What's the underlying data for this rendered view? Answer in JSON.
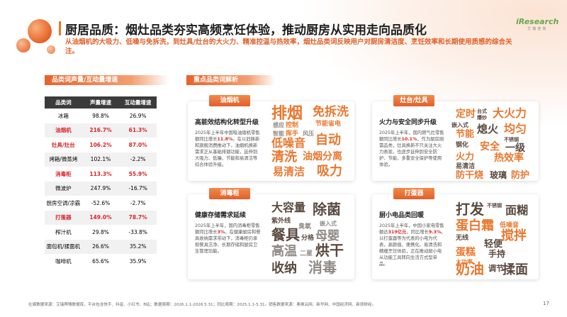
{
  "header": {
    "title": "厨居品质：烟灶品类夯实高频烹饪体验，推动厨房从实用走向品质化",
    "subtitle": "从油烟机的大吸力、低噪与免拆洗，到灶具/灶台的大火力、精准控温与热效率，烟灶品类词反映用户对厨房清洁度、烹饪效率和长期使用质感的综合关注。",
    "logo": {
      "brand": "iResearch",
      "name": "艾瑞咨询"
    }
  },
  "table_section": {
    "title": "品类词声量/互动量增速",
    "table": {
      "columns": [
        "品类词",
        "声量增速",
        "互动量增速"
      ],
      "rows": [
        [
          "冰箱",
          "98.8%",
          "26.9%"
        ],
        [
          "油烟机",
          "216.7%",
          "61.3%"
        ],
        [
          "灶具/灶台",
          "106.2%",
          "87.0%"
        ],
        [
          "烤箱/微蒸烤",
          "102.1%",
          "-2.2%"
        ],
        [
          "消毒柜",
          "113.3%",
          "55.9%"
        ],
        [
          "微波炉",
          "247.9%",
          "-16.7%"
        ],
        [
          "厨房空调/凉霸",
          "-52.6%",
          "-2.7%"
        ],
        [
          "打蛋器",
          "149.0%",
          "78.7%"
        ],
        [
          "榨汁机",
          "29.8%",
          "-33.8%"
        ],
        [
          "面包机/揉面机",
          "26.6%",
          "35.2%"
        ],
        [
          "咖啡机",
          "65.6%",
          "35.9%"
        ]
      ],
      "highlighted_rows": [
        1,
        2,
        4,
        7
      ]
    }
  },
  "analysis_section": {
    "title": "重点品类词解析",
    "cards": [
      {
        "tag": "油烟机",
        "heading": "高能效结构化转型升级",
        "body": [
          "2025年上半年中国吸油烟机零售额同比增长",
          "11.8%",
          "。在以旧换新和旗舰消费推动下，油烟机换新需求正从基础排烟功能，延伸到大吸力、低噪、节能和易清洁等综合体验升级。"
        ],
        "words": [
          "排烟",
          "免拆洗",
          "感应",
          "控制",
          "节能省电",
          "智能",
          "挥手",
          "风压",
          "低噪音",
          "自动",
          "清洗",
          "油烟分离",
          "易清洁",
          "吸力"
        ]
      },
      {
        "tag": "灶台/灶具",
        "heading": "火力与安全同步升级",
        "body": [
          "2025年上半年，国内燃气灶零售额同比增长",
          "10.1%",
          "，作为厨房刚需品类，灶具换新不只关注大火力表现，也逐步延伸到安全防护、节能、多重安全保护等使用体验。"
        ],
        "words": [
          "定时",
          "台式",
          "爆炒",
          "大火力",
          "嵌入式",
          "熄火",
          "均匀",
          "节能",
          "钢化",
          "不锈钢",
          "安全",
          "一级",
          "火力",
          "热效率",
          "易清洁",
          "防干烧",
          "玻璃",
          "防护"
        ]
      },
      {
        "tag": "消毒柜",
        "heading": "健康存储需求延续",
        "body": [
          "2025年上半年，国内消毒柜零售额同比增长",
          "3%",
          "。在健康厨房和餐具收纳需求带动下，消毒柜仍承担餐具洁净、长期存储和厨房卫生管理功能。"
        ],
        "words": [
          "大容量",
          "除菌",
          "紫外线",
          "臭氧",
          "嵌入式",
          "餐具",
          "分格",
          "母婴",
          "高温",
          "二星",
          "烘干",
          "收纳",
          "消毒"
        ]
      },
      {
        "tag": "打蛋器",
        "heading": "厨小电品类回暖",
        "body": [
          "2025年上半年，中国小家电零售额达",
          "319亿元",
          "，同比增长",
          "9.3%",
          "。以打蛋器等为代表的小电为代表，高颜值、便携化、易清洗和精细烹饪体验，正在推动厨小电从功能工具转向生活方式型单品。"
        ],
        "words": [
          "打发",
          "不锈钢",
          "面糊",
          "低噪音",
          "蛋白霜",
          "无线",
          "搅拌",
          "轻便",
          "蛋糕",
          "手持",
          "大功率",
          "调节",
          "奶油",
          "揉面"
        ]
      }
    ]
  },
  "footer": {
    "source": "社媒数据来源：艾瑞舆情数据库，平台包含快手、抖音、小红书、B站；数据周期：2026.1.1-2026.5.31；同比周期：2025.1.1-5.31。销售数据来源：奥维云网、新华网、中国经济网、新浪财经。",
    "page": "17"
  }
}
